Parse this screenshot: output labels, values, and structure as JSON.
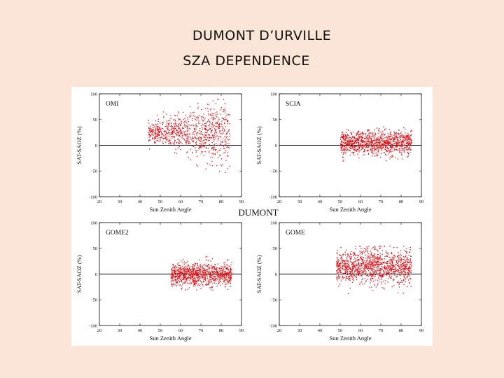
{
  "slide": {
    "title_line1": "DUMONT D’URVILLE",
    "title_line2": "SZA DEPENDENCE"
  },
  "figure": {
    "center_label": "DUMONT"
  },
  "colors": {
    "background": "#fbe5d6",
    "points": "#e0141a",
    "zero_line": "#000000"
  },
  "chart_data": [
    {
      "type": "scatter",
      "name": "OMI",
      "xlabel": "Sun Zenith Angle",
      "ylabel": "SAT-SAOZ (%)",
      "xlim": [
        20,
        90
      ],
      "ylim": [
        -100,
        100
      ],
      "xticks": [
        20,
        30,
        40,
        50,
        60,
        70,
        80,
        90
      ],
      "yticks": [
        -100,
        -50,
        0,
        50,
        100
      ],
      "zero_line": true,
      "points_summary": {
        "x_range": [
          44,
          84
        ],
        "y_center": 25,
        "y_spread": [
          -60,
          90
        ],
        "approx_count": 900
      }
    },
    {
      "type": "scatter",
      "name": "SCIA",
      "xlabel": "Sun Zenith Angle",
      "ylabel": "SAT-SAOZ (%)",
      "xlim": [
        20,
        90
      ],
      "ylim": [
        -100,
        100
      ],
      "xticks": [
        20,
        30,
        40,
        50,
        60,
        70,
        80,
        90
      ],
      "yticks": [
        -100,
        -50,
        0,
        50,
        100
      ],
      "zero_line": true,
      "points_summary": {
        "x_range": [
          50,
          85
        ],
        "y_center": 5,
        "y_spread": [
          -30,
          40
        ],
        "approx_count": 1100
      }
    },
    {
      "type": "scatter",
      "name": "GOME2",
      "xlabel": "Sun Zenith Angle",
      "ylabel": "SAT-SAOZ (%)",
      "xlim": [
        20,
        90
      ],
      "ylim": [
        -100,
        100
      ],
      "xticks": [
        20,
        30,
        40,
        50,
        60,
        70,
        80,
        90
      ],
      "yticks": [
        -100,
        -50,
        0,
        50,
        100
      ],
      "zero_line": true,
      "points_summary": {
        "x_range": [
          55,
          85
        ],
        "y_center": 0,
        "y_spread": [
          -30,
          35
        ],
        "approx_count": 1000
      }
    },
    {
      "type": "scatter",
      "name": "GOME",
      "xlabel": "Sun Zenith Angle",
      "ylabel": "SAT-SAOZ (%)",
      "xlim": [
        20,
        90
      ],
      "ylim": [
        -100,
        100
      ],
      "xticks": [
        20,
        30,
        40,
        50,
        60,
        70,
        80,
        90
      ],
      "yticks": [
        -100,
        -50,
        0,
        50,
        100
      ],
      "zero_line": true,
      "points_summary": {
        "x_range": [
          48,
          85
        ],
        "y_center": 15,
        "y_spread": [
          -45,
          55
        ],
        "approx_count": 1200
      }
    }
  ]
}
